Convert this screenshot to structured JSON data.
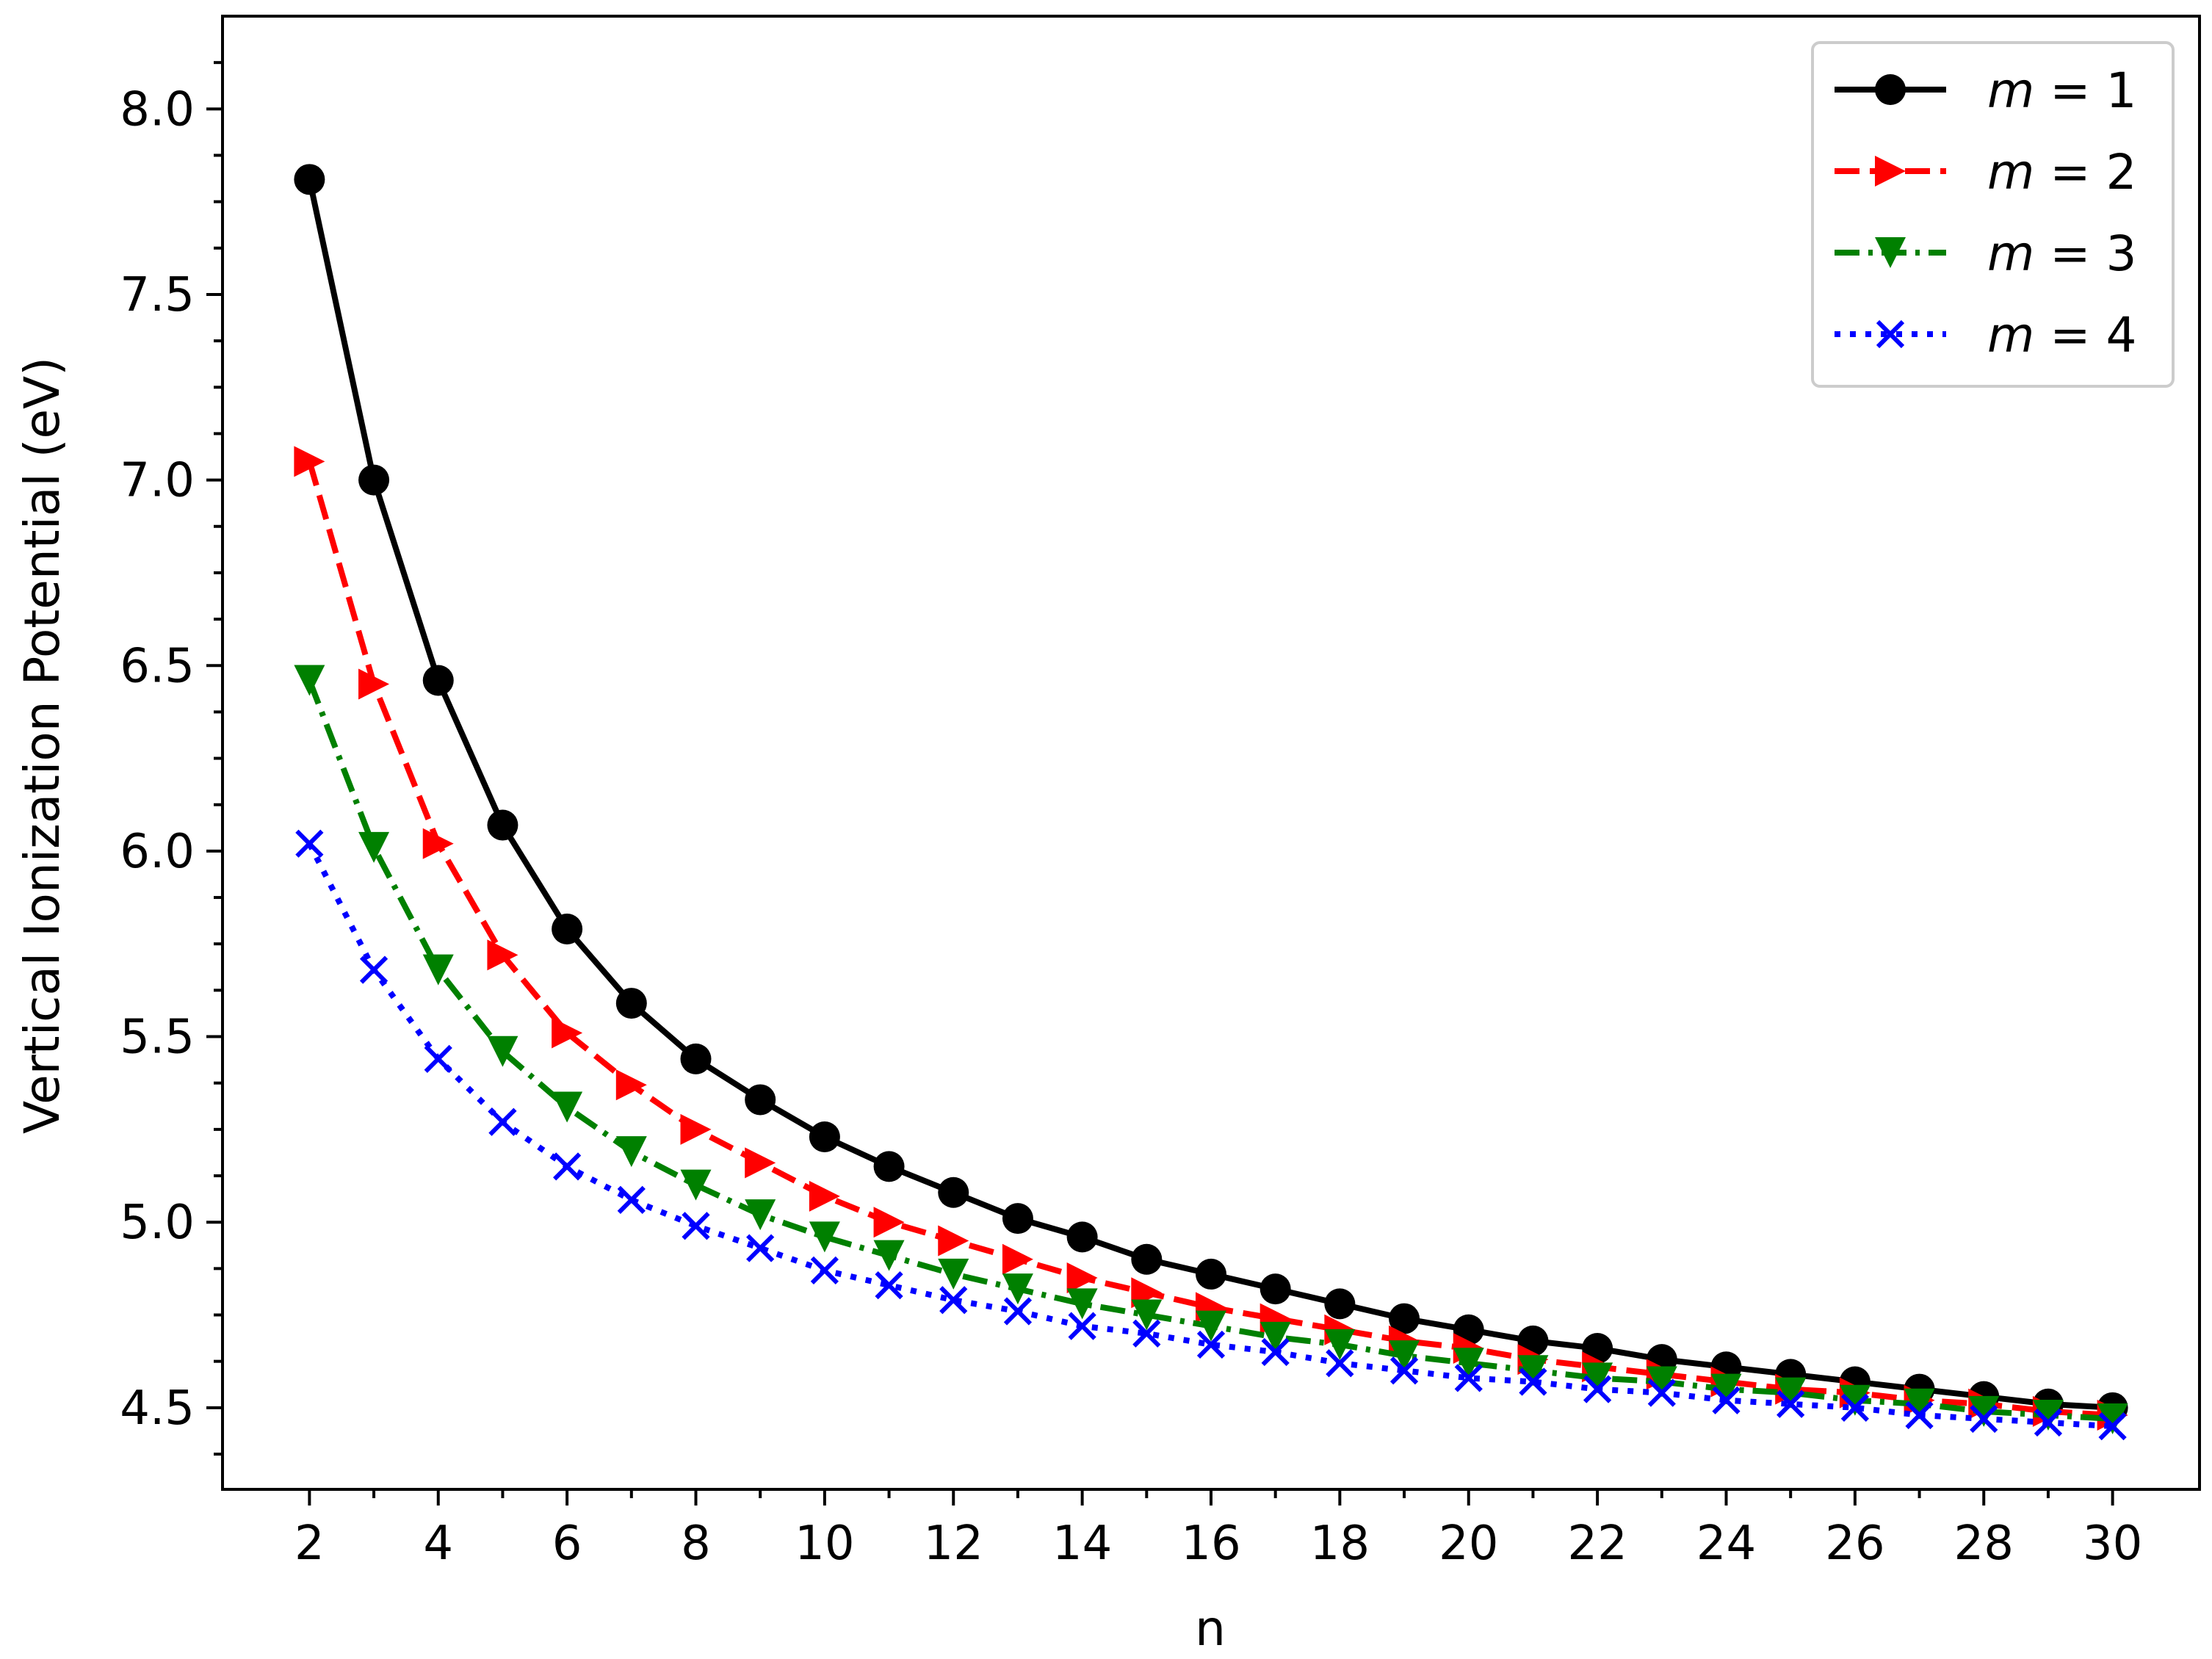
{
  "chart_data": {
    "type": "line",
    "xlabel": "n",
    "ylabel": "Vertical Ionization Potential (eV)",
    "xlim": [
      0.65,
      31.35
    ],
    "ylim": [
      4.28,
      8.25
    ],
    "xticks": [
      2,
      4,
      6,
      8,
      10,
      12,
      14,
      16,
      18,
      20,
      22,
      24,
      26,
      28,
      30
    ],
    "yticks": [
      4.5,
      5.0,
      5.5,
      6.0,
      6.5,
      7.0,
      7.5,
      8.0
    ],
    "ytick_labels": [
      "4.5",
      "5.0",
      "5.5",
      "6.0",
      "6.5",
      "7.0",
      "7.5",
      "8.0"
    ],
    "x": [
      2,
      3,
      4,
      5,
      6,
      7,
      8,
      9,
      10,
      11,
      12,
      13,
      14,
      15,
      16,
      17,
      18,
      19,
      20,
      21,
      22,
      23,
      24,
      25,
      26,
      27,
      28,
      29,
      30
    ],
    "legend_position": "top-right",
    "grid": false,
    "series": [
      {
        "name": "m = 1",
        "color": "#000000",
        "marker": "circle",
        "linestyle": "solid",
        "values": [
          7.81,
          7.0,
          6.46,
          6.07,
          5.79,
          5.59,
          5.44,
          5.33,
          5.23,
          5.15,
          5.08,
          5.01,
          4.96,
          4.9,
          4.86,
          4.82,
          4.78,
          4.74,
          4.71,
          4.68,
          4.66,
          4.63,
          4.61,
          4.59,
          4.57,
          4.55,
          4.53,
          4.51,
          4.5
        ]
      },
      {
        "name": "m = 2",
        "color": "#ff0000",
        "marker": "triangle-right",
        "linestyle": "dashed",
        "values": [
          7.05,
          6.45,
          6.02,
          5.72,
          5.51,
          5.37,
          5.25,
          5.16,
          5.07,
          5.0,
          4.95,
          4.9,
          4.85,
          4.81,
          4.77,
          4.74,
          4.71,
          4.68,
          4.66,
          4.63,
          4.61,
          4.59,
          4.57,
          4.55,
          4.54,
          4.52,
          4.51,
          4.49,
          4.48
        ]
      },
      {
        "name": "m = 3",
        "color": "#008000",
        "marker": "triangle-down",
        "linestyle": "dashdot",
        "values": [
          6.46,
          6.01,
          5.68,
          5.46,
          5.31,
          5.19,
          5.1,
          5.02,
          4.96,
          4.91,
          4.86,
          4.82,
          4.78,
          4.75,
          4.72,
          4.69,
          4.67,
          4.64,
          4.62,
          4.6,
          4.58,
          4.57,
          4.55,
          4.54,
          4.52,
          4.51,
          4.49,
          4.48,
          4.47
        ]
      },
      {
        "name": "m = 4",
        "color": "#0000ff",
        "marker": "x",
        "linestyle": "dotted",
        "values": [
          6.02,
          5.68,
          5.44,
          5.27,
          5.15,
          5.06,
          4.99,
          4.93,
          4.87,
          4.83,
          4.79,
          4.76,
          4.72,
          4.7,
          4.67,
          4.65,
          4.62,
          4.6,
          4.58,
          4.57,
          4.55,
          4.54,
          4.52,
          4.51,
          4.5,
          4.48,
          4.47,
          4.46,
          4.45
        ]
      }
    ],
    "legend": [
      {
        "prefix": "m",
        "suffix": " = 1"
      },
      {
        "prefix": "m",
        "suffix": " = 2"
      },
      {
        "prefix": "m",
        "suffix": " = 3"
      },
      {
        "prefix": "m",
        "suffix": " = 4"
      }
    ]
  }
}
